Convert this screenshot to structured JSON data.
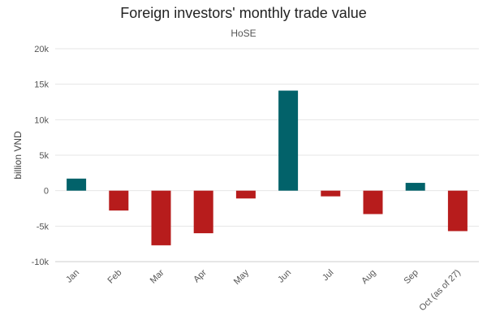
{
  "chart_data": {
    "type": "bar",
    "title": "Foreign investors' monthly trade value",
    "subtitle": "HoSE",
    "ylabel": "billion VND",
    "xlabel": "",
    "categories": [
      "Jan",
      "Feb",
      "Mar",
      "Apr",
      "May",
      "Jun",
      "Jul",
      "Aug",
      "Sep",
      "Oct (as of 27)"
    ],
    "values": [
      1700,
      -2800,
      -7700,
      -6000,
      -1100,
      14100,
      -800,
      -3300,
      1100,
      -5700
    ],
    "ylim": [
      -10000,
      20000
    ],
    "yticks": [
      -10000,
      -5000,
      0,
      5000,
      10000,
      15000,
      20000
    ],
    "ytick_labels": [
      "-10k",
      "-5k",
      "0",
      "5k",
      "10k",
      "15k",
      "20k"
    ],
    "grid": true,
    "legend": "none",
    "colors": {
      "positive": "#02626a",
      "negative": "#b71c1c",
      "grid": "#e6e6e6",
      "axis": "#cccccc"
    }
  }
}
